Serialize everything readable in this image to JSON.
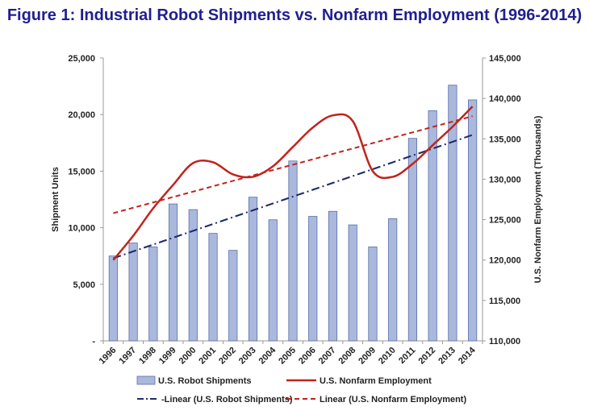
{
  "title": "Figure 1: Industrial Robot Shipments vs. Nonfarm Employment (1996-2014)",
  "colors": {
    "bar_fill": "#a9b8dc",
    "bar_stroke": "#5a6fa8",
    "employment_line": "#c0241c",
    "robot_trend": "#1f2a6e",
    "employment_trend": "#c0241c"
  },
  "chart_data": {
    "type": "bar",
    "categories": [
      "1996",
      "1997",
      "1998",
      "1999",
      "2000",
      "2001",
      "2002",
      "2003",
      "2004",
      "2005",
      "2006",
      "2007",
      "2008",
      "2009",
      "2010",
      "2011",
      "2012",
      "2013",
      "2014"
    ],
    "ylabel": "Shipment Units",
    "y2label": "U.S. Nonfarm Employment (Thousands)",
    "ylim": [
      0,
      25000
    ],
    "y2lim": [
      110000,
      145000
    ],
    "yticks": [
      "-",
      "5,000",
      "10,000",
      "15,000",
      "20,000",
      "25,000"
    ],
    "y2ticks": [
      "110,000",
      "115,000",
      "120,000",
      "125,000",
      "130,000",
      "135,000",
      "140,000",
      "145,000"
    ],
    "series": [
      {
        "name": "U.S. Robot Shipments",
        "type": "bar",
        "axis": "left",
        "values": [
          7500,
          8650,
          8300,
          12100,
          11600,
          9500,
          8000,
          12700,
          10700,
          15900,
          11000,
          11450,
          10250,
          8300,
          10800,
          17900,
          20350,
          22600,
          21300
        ]
      },
      {
        "name": "U.S. Nonfarm Employment",
        "type": "line",
        "axis": "right",
        "values": [
          120000,
          123000,
          126400,
          129300,
          132000,
          132100,
          130600,
          130300,
          131600,
          134000,
          136400,
          137900,
          137200,
          131000,
          130300,
          131900,
          134200,
          136500,
          139000
        ]
      },
      {
        "name": "Linear (U.S. Robot Shipments)",
        "type": "trendline",
        "axis": "left",
        "from": 7300,
        "to": 18200
      },
      {
        "name": "Linear (U.S. Nonfarm Employment)",
        "type": "trendline",
        "axis": "right",
        "from": 125800,
        "to": 137800
      }
    ],
    "legend": {
      "position": "bottom",
      "entries": [
        "U.S. Robot Shipments",
        "U.S. Nonfarm Employment",
        "-Linear (U.S. Robot Shipments)",
        "Linear (U.S. Nonfarm Employment)"
      ]
    }
  }
}
